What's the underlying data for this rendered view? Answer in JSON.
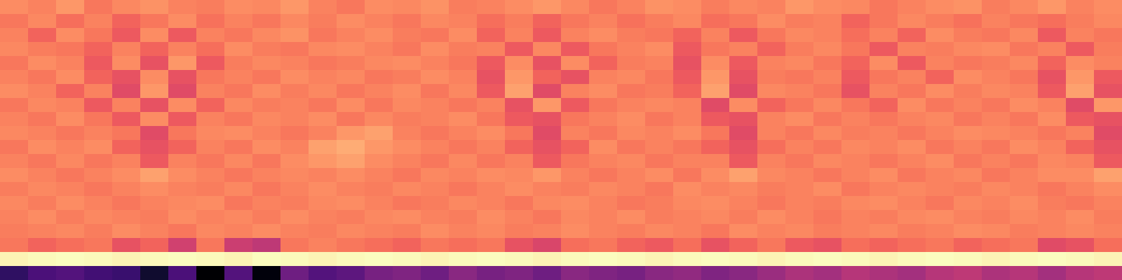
{
  "chart_data": {
    "type": "heatmap",
    "color": "magma",
    "tick_labels": false,
    "cells": [
      [
        74,
        72,
        76,
        70,
        73,
        75,
        72,
        71,
        74,
        73,
        76,
        72,
        70,
        74,
        73,
        75,
        71,
        72,
        74,
        76,
        73,
        70,
        72,
        75,
        74,
        71,
        73,
        72,
        76,
        74,
        73,
        70,
        72,
        74,
        75,
        71,
        73,
        76,
        72,
        74
      ],
      [
        70,
        73,
        68,
        72,
        66,
        70,
        74,
        69,
        72,
        70,
        73,
        71,
        74,
        72,
        70,
        73,
        72,
        68,
        71,
        66,
        70,
        72,
        69,
        71,
        73,
        68,
        70,
        74,
        71,
        72,
        66,
        70,
        73,
        71,
        69,
        72,
        70,
        68,
        71,
        73
      ],
      [
        72,
        66,
        74,
        70,
        64,
        74,
        64,
        72,
        70,
        73,
        75,
        70,
        72,
        74,
        71,
        70,
        74,
        66,
        72,
        64,
        72,
        74,
        71,
        70,
        66,
        72,
        64,
        70,
        73,
        72,
        68,
        72,
        66,
        74,
        71,
        70,
        73,
        64,
        72,
        70
      ],
      [
        73,
        71,
        70,
        66,
        72,
        66,
        72,
        68,
        74,
        71,
        70,
        73,
        74,
        72,
        70,
        74,
        71,
        72,
        64,
        73,
        64,
        70,
        72,
        74,
        64,
        70,
        72,
        66,
        71,
        73,
        70,
        64,
        72,
        71,
        73,
        74,
        70,
        72,
        64,
        71
      ],
      [
        70,
        74,
        72,
        64,
        74,
        62,
        76,
        64,
        71,
        73,
        72,
        70,
        71,
        73,
        74,
        72,
        70,
        64,
        74,
        62,
        74,
        66,
        71,
        72,
        62,
        74,
        64,
        72,
        73,
        70,
        66,
        74,
        64,
        72,
        70,
        71,
        73,
        66,
        74,
        72
      ],
      [
        72,
        70,
        74,
        66,
        62,
        74,
        62,
        70,
        72,
        70,
        74,
        72,
        73,
        70,
        71,
        74,
        72,
        62,
        76,
        66,
        62,
        72,
        73,
        70,
        64,
        76,
        62,
        71,
        70,
        72,
        64,
        70,
        72,
        66,
        74,
        72,
        70,
        62,
        76,
        64
      ],
      [
        74,
        72,
        66,
        72,
        60,
        76,
        60,
        72,
        70,
        74,
        71,
        73,
        70,
        72,
        74,
        70,
        73,
        64,
        78,
        60,
        72,
        74,
        70,
        71,
        66,
        78,
        60,
        73,
        72,
        70,
        62,
        72,
        70,
        74,
        71,
        73,
        72,
        64,
        78,
        62
      ],
      [
        70,
        73,
        72,
        64,
        72,
        62,
        74,
        66,
        73,
        71,
        72,
        70,
        74,
        70,
        73,
        72,
        70,
        72,
        62,
        76,
        64,
        70,
        72,
        73,
        72,
        60,
        74,
        66,
        70,
        73,
        70,
        66,
        74,
        70,
        72,
        70,
        74,
        72,
        60,
        76
      ],
      [
        72,
        70,
        74,
        70,
        64,
        74,
        64,
        72,
        70,
        73,
        72,
        74,
        70,
        73,
        71,
        72,
        74,
        70,
        64,
        62,
        70,
        72,
        74,
        70,
        72,
        64,
        62,
        72,
        74,
        70,
        72,
        70,
        72,
        73,
        70,
        72,
        70,
        74,
        64,
        62
      ],
      [
        73,
        72,
        70,
        72,
        70,
        60,
        70,
        73,
        74,
        72,
        70,
        72,
        76,
        78,
        72,
        70,
        72,
        74,
        70,
        60,
        72,
        70,
        73,
        72,
        74,
        70,
        60,
        72,
        70,
        73,
        71,
        72,
        70,
        72,
        74,
        73,
        72,
        70,
        72,
        60
      ],
      [
        70,
        74,
        72,
        74,
        66,
        62,
        66,
        72,
        70,
        74,
        72,
        78,
        80,
        76,
        74,
        72,
        70,
        72,
        66,
        62,
        66,
        74,
        70,
        72,
        70,
        66,
        62,
        68,
        72,
        70,
        73,
        72,
        74,
        70,
        72,
        70,
        74,
        72,
        66,
        62
      ],
      [
        72,
        70,
        73,
        70,
        72,
        64,
        72,
        70,
        73,
        70,
        74,
        76,
        78,
        74,
        72,
        70,
        73,
        70,
        72,
        64,
        70,
        72,
        73,
        70,
        72,
        72,
        64,
        72,
        70,
        73,
        72,
        70,
        72,
        74,
        70,
        72,
        70,
        73,
        72,
        64
      ],
      [
        74,
        72,
        70,
        72,
        74,
        78,
        74,
        72,
        70,
        72,
        73,
        72,
        74,
        72,
        70,
        73,
        72,
        74,
        73,
        76,
        72,
        70,
        72,
        74,
        70,
        74,
        78,
        73,
        72,
        70,
        72,
        74,
        70,
        72,
        73,
        70,
        72,
        74,
        74,
        78
      ],
      [
        71,
        73,
        72,
        70,
        72,
        74,
        72,
        71,
        73,
        70,
        72,
        74,
        72,
        71,
        73,
        72,
        70,
        72,
        74,
        72,
        71,
        73,
        72,
        70,
        74,
        72,
        73,
        71,
        72,
        74,
        70,
        72,
        73,
        72,
        71,
        73,
        72,
        70,
        72,
        74
      ],
      [
        73,
        71,
        74,
        72,
        70,
        72,
        73,
        74,
        70,
        72,
        71,
        73,
        74,
        72,
        70,
        71,
        73,
        72,
        70,
        73,
        74,
        72,
        70,
        71,
        73,
        74,
        72,
        70,
        72,
        71,
        73,
        74,
        72,
        70,
        73,
        72,
        74,
        71,
        70,
        72
      ],
      [
        72,
        74,
        71,
        73,
        72,
        71,
        74,
        72,
        73,
        71,
        74,
        72,
        71,
        73,
        74,
        72,
        71,
        74,
        72,
        70,
        73,
        72,
        74,
        71,
        72,
        73,
        71,
        74,
        72,
        70,
        72,
        71,
        73,
        74,
        72,
        71,
        73,
        72,
        74,
        71
      ],
      [
        71,
        72,
        73,
        71,
        74,
        72,
        70,
        73,
        72,
        74,
        72,
        71,
        73,
        72,
        71,
        74,
        72,
        73,
        71,
        72,
        74,
        72,
        71,
        73,
        72,
        70,
        74,
        72,
        73,
        71,
        72,
        73,
        71,
        72,
        74,
        73,
        71,
        72,
        73,
        72
      ],
      [
        70,
        66,
        68,
        70,
        62,
        66,
        56,
        70,
        55,
        52,
        70,
        72,
        70,
        68,
        66,
        70,
        68,
        70,
        62,
        58,
        68,
        70,
        66,
        64,
        68,
        62,
        66,
        70,
        64,
        62,
        68,
        66,
        68,
        70,
        66,
        68,
        70,
        60,
        62,
        68
      ],
      [
        94,
        95,
        96,
        95,
        94,
        95,
        96,
        95,
        94,
        96,
        95,
        94,
        95,
        96,
        95,
        94,
        95,
        96,
        95,
        94,
        95,
        96,
        95,
        94,
        95,
        96,
        95,
        94,
        95,
        96,
        95,
        94,
        95,
        96,
        95,
        94,
        95,
        96,
        95,
        94
      ],
      [
        20,
        26,
        28,
        24,
        22,
        12,
        26,
        4,
        28,
        6,
        34,
        28,
        30,
        36,
        38,
        34,
        40,
        36,
        38,
        34,
        40,
        38,
        36,
        40,
        42,
        38,
        40,
        44,
        48,
        46,
        50,
        48,
        46,
        50,
        52,
        48,
        50,
        46,
        50,
        52
      ]
    ]
  }
}
